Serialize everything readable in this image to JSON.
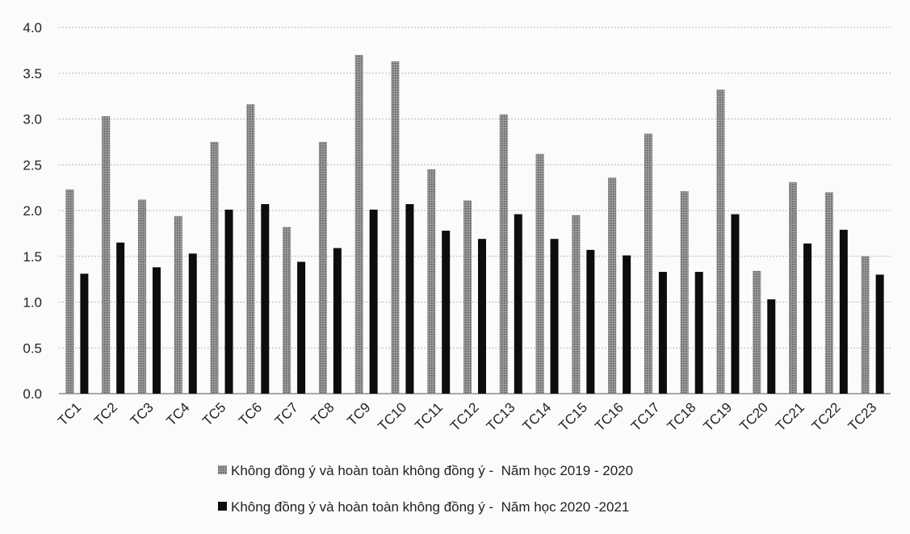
{
  "chart_data": {
    "type": "bar",
    "title": "",
    "xlabel": "",
    "ylabel": "",
    "ylim": [
      0,
      4.0
    ],
    "yticks": [
      "0.0",
      "0.5",
      "1.0",
      "1.5",
      "2.0",
      "2.5",
      "3.0",
      "3.5",
      "4.0"
    ],
    "grid": true,
    "legend_position": "bottom",
    "categories": [
      "TC1",
      "TC2",
      "TC3",
      "TC4",
      "TC5",
      "TC6",
      "TC7",
      "TC8",
      "TC9",
      "TC10",
      "TC11",
      "TC12",
      "TC13",
      "TC14",
      "TC15",
      "TC16",
      "TC17",
      "TC18",
      "TC19",
      "TC20",
      "TC21",
      "TC22",
      "TC23"
    ],
    "series": [
      {
        "name": "Không đồng ý và hoàn toàn không đồng ý -  Năm học 2019 - 2020",
        "color": "#8a8a8a",
        "pattern": "dotted",
        "values": [
          2.23,
          3.03,
          2.12,
          1.94,
          2.75,
          3.16,
          1.82,
          2.75,
          3.7,
          3.63,
          2.45,
          2.11,
          3.05,
          2.62,
          1.95,
          2.36,
          2.84,
          2.21,
          3.32,
          1.34,
          2.31,
          2.2,
          1.5
        ]
      },
      {
        "name": "Không đồng ý và hoàn toàn không đồng ý -  Năm học 2020 -2021",
        "color": "#0d0d0d",
        "pattern": "solid",
        "values": [
          1.31,
          1.65,
          1.38,
          1.53,
          2.01,
          2.07,
          1.44,
          1.59,
          2.01,
          2.07,
          1.78,
          1.69,
          1.96,
          1.69,
          1.57,
          1.51,
          1.33,
          1.33,
          1.96,
          1.03,
          1.64,
          1.79,
          1.3
        ]
      }
    ]
  }
}
